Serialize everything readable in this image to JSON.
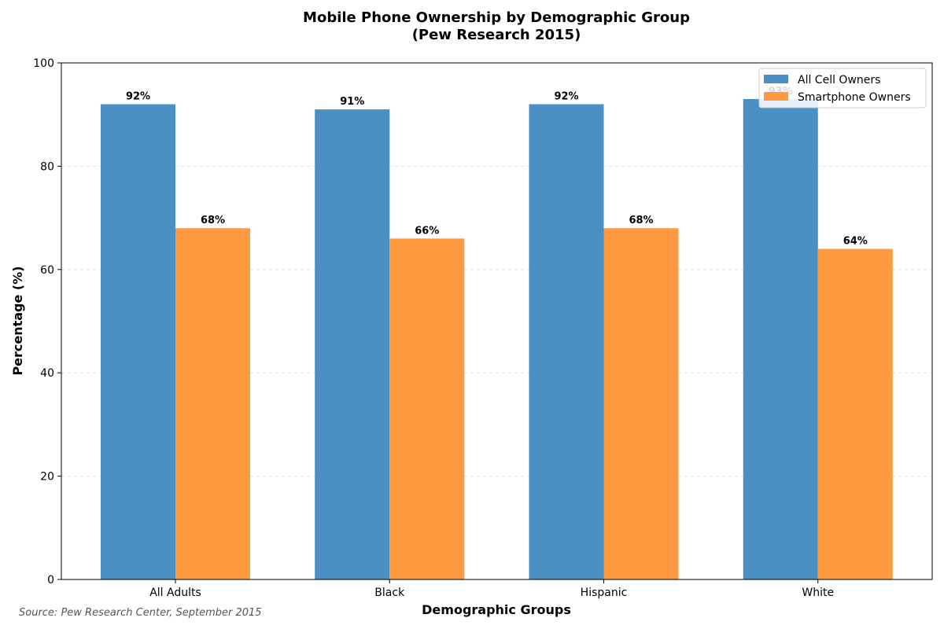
{
  "chart_data": {
    "type": "bar",
    "title": "Mobile Phone Ownership by Demographic Group\n(Pew Research 2015)",
    "xlabel": "Demographic Groups",
    "ylabel": "Percentage (%)",
    "categories": [
      "All Adults",
      "Black",
      "Hispanic",
      "White"
    ],
    "series": [
      {
        "name": "All Cell Owners",
        "values": [
          92,
          91,
          92,
          93
        ],
        "color": "#4a90c2"
      },
      {
        "name": "Smartphone Owners",
        "values": [
          68,
          66,
          68,
          64
        ],
        "color": "#ff9a40"
      }
    ],
    "data_labels": [
      [
        "92%",
        "91%",
        "92%",
        "93%"
      ],
      [
        "68%",
        "66%",
        "68%",
        "64%"
      ]
    ],
    "ylim": [
      0,
      100
    ],
    "yticks": [
      "0",
      "20",
      "40",
      "60",
      "80",
      "100"
    ],
    "grid": "horizontal dashed",
    "legend_position": "top-right"
  },
  "source": "Source: Pew Research Center, September 2015"
}
